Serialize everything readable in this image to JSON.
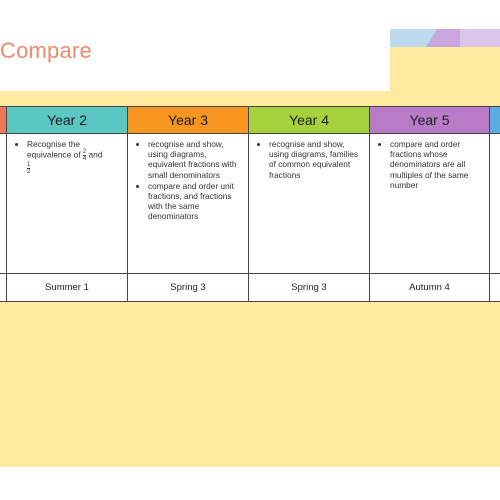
{
  "page": {
    "title": "Compare"
  },
  "colors": {
    "year1": "#f0785a",
    "year2": "#5cc7c2",
    "year3": "#f6951f",
    "year4": "#a5d23c",
    "year5": "#b77bc8",
    "year6": "#5aaee0",
    "background": "#ffe8a0"
  },
  "table": {
    "columns": [
      {
        "year": "Year 2",
        "objectives": [
          "Recognise the equivalence of"
        ],
        "fraction_a": {
          "num": "2",
          "den": "4"
        },
        "connector": "and",
        "fraction_b": {
          "num": "1",
          "den": "2"
        },
        "term": "Summer 1"
      },
      {
        "year": "Year 3",
        "objectives": [
          "recognise and show, using diagrams, equivalent fractions with small denominators",
          "compare and order unit fractions, and fractions with the same denominators"
        ],
        "term": "Spring 3"
      },
      {
        "year": "Year 4",
        "objectives": [
          "recognise and show, using diagrams, families of common equivalent fractions"
        ],
        "term": "Spring 3"
      },
      {
        "year": "Year 5",
        "objectives": [
          "compare and order fractions whose denominators are all multiples of the same number"
        ],
        "term": "Autumn 4"
      }
    ]
  }
}
